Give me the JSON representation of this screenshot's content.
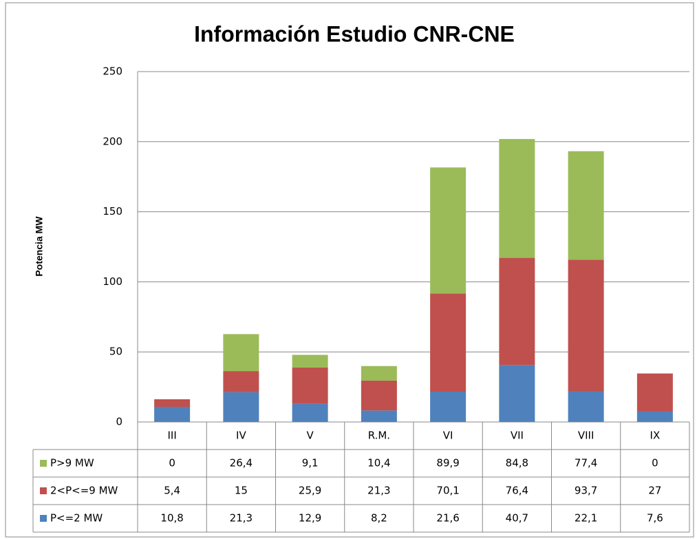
{
  "chart_data": {
    "type": "stacked_bar",
    "title": "Información Estudio CNR-CNE",
    "y_label": "Potencia MW",
    "categories": [
      "III",
      "IV",
      "V",
      "R.M.",
      "VI",
      "VII",
      "VIII",
      "IX"
    ],
    "series": [
      {
        "name": "P>9 MW",
        "color": "#9bbb59",
        "values": [
          0,
          26.4,
          9.1,
          10.4,
          89.9,
          84.8,
          77.4,
          0
        ],
        "value_labels": [
          "0",
          "26,4",
          "9,1",
          "10,4",
          "89,9",
          "84,8",
          "77,4",
          "0"
        ]
      },
      {
        "name": "2<P<=9 MW",
        "color": "#c0504d",
        "values": [
          5.4,
          15,
          25.9,
          21.3,
          70.1,
          76.4,
          93.7,
          27
        ],
        "value_labels": [
          "5,4",
          "15",
          "25,9",
          "21,3",
          "70,1",
          "76,4",
          "93,7",
          "27"
        ]
      },
      {
        "name": "P<=2 MW",
        "color": "#4f81bd",
        "values": [
          10.8,
          21.3,
          12.9,
          8.2,
          21.6,
          40.7,
          22.1,
          7.6
        ],
        "value_labels": [
          "10,8",
          "21,3",
          "12,9",
          "8,2",
          "21,6",
          "40,7",
          "22,1",
          "7,6"
        ]
      }
    ],
    "ylim": [
      0,
      250
    ],
    "yticks": [
      0,
      50,
      100,
      150,
      200,
      250
    ],
    "grid": true
  }
}
